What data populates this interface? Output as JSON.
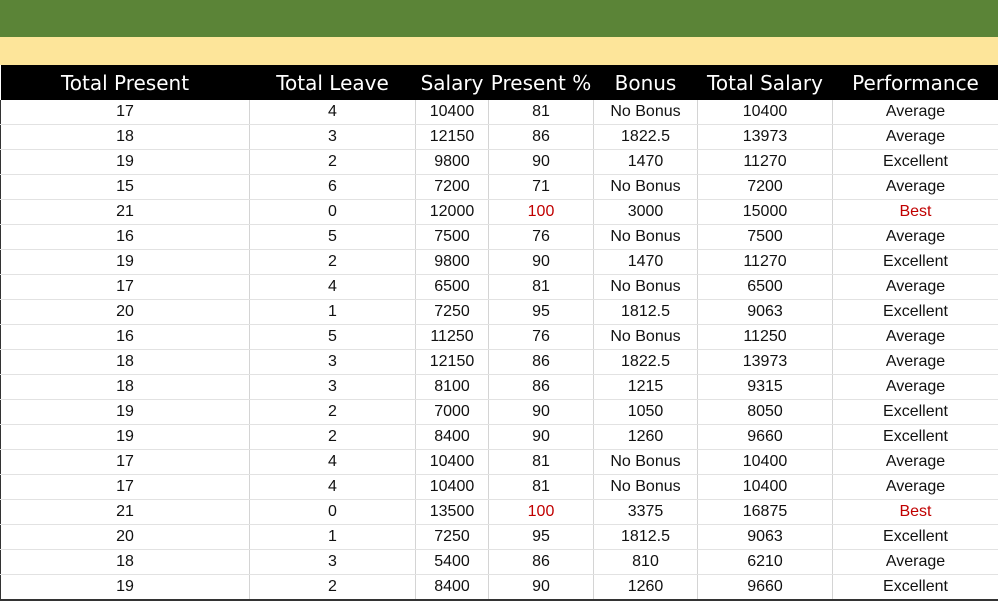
{
  "columns": [
    "Total Present",
    "Total Leave",
    "Salary",
    "Present %",
    "Bonus",
    "Total Salary",
    "Performance"
  ],
  "highlight_color": "#c00000",
  "header_band_color": "#5b8437",
  "subheader_band_color": "#fde59a",
  "rows": [
    [
      "17",
      "4",
      "10400",
      "81",
      "No Bonus",
      "10400",
      "Average"
    ],
    [
      "18",
      "3",
      "12150",
      "86",
      "1822.5",
      "13973",
      "Average"
    ],
    [
      "19",
      "2",
      "9800",
      "90",
      "1470",
      "11270",
      "Excellent"
    ],
    [
      "15",
      "6",
      "7200",
      "71",
      "No Bonus",
      "7200",
      "Average"
    ],
    [
      "21",
      "0",
      "12000",
      "100",
      "3000",
      "15000",
      "Best"
    ],
    [
      "16",
      "5",
      "7500",
      "76",
      "No Bonus",
      "7500",
      "Average"
    ],
    [
      "19",
      "2",
      "9800",
      "90",
      "1470",
      "11270",
      "Excellent"
    ],
    [
      "17",
      "4",
      "6500",
      "81",
      "No Bonus",
      "6500",
      "Average"
    ],
    [
      "20",
      "1",
      "7250",
      "95",
      "1812.5",
      "9063",
      "Excellent"
    ],
    [
      "16",
      "5",
      "11250",
      "76",
      "No Bonus",
      "11250",
      "Average"
    ],
    [
      "18",
      "3",
      "12150",
      "86",
      "1822.5",
      "13973",
      "Average"
    ],
    [
      "18",
      "3",
      "8100",
      "86",
      "1215",
      "9315",
      "Average"
    ],
    [
      "19",
      "2",
      "7000",
      "90",
      "1050",
      "8050",
      "Excellent"
    ],
    [
      "19",
      "2",
      "8400",
      "90",
      "1260",
      "9660",
      "Excellent"
    ],
    [
      "17",
      "4",
      "10400",
      "81",
      "No Bonus",
      "10400",
      "Average"
    ],
    [
      "17",
      "4",
      "10400",
      "81",
      "No Bonus",
      "10400",
      "Average"
    ],
    [
      "21",
      "0",
      "13500",
      "100",
      "3375",
      "16875",
      "Best"
    ],
    [
      "20",
      "1",
      "7250",
      "95",
      "1812.5",
      "9063",
      "Excellent"
    ],
    [
      "18",
      "3",
      "5400",
      "86",
      "810",
      "6210",
      "Average"
    ],
    [
      "19",
      "2",
      "8400",
      "90",
      "1260",
      "9660",
      "Excellent"
    ]
  ]
}
